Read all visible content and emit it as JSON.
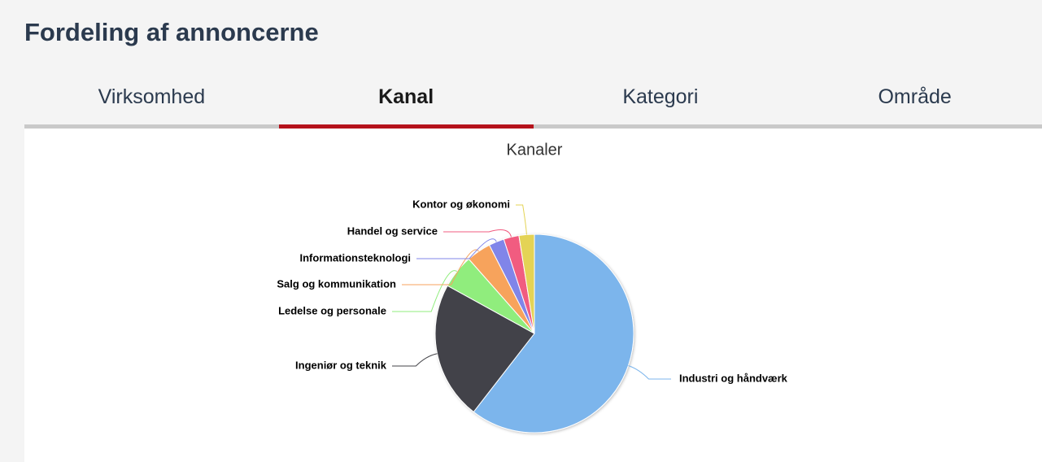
{
  "header": {
    "title": "Fordeling af annoncerne"
  },
  "tabs": [
    "Virksomhed",
    "Kanal",
    "Kategori",
    "Område"
  ],
  "chart_data": {
    "type": "pie",
    "title": "Kanaler",
    "categories": [
      "Industri og håndværk",
      "Ingeniør og teknik",
      "Ledelse og personale",
      "Salg og kommunikation",
      "Informationsteknologi",
      "Handel og service",
      "Kontor og økonomi"
    ],
    "values": [
      60.5,
      22.5,
      5.5,
      4,
      2.5,
      2.5,
      2.5
    ],
    "colors": [
      "#7cb5ec",
      "#434348",
      "#90ed7d",
      "#f7a35c",
      "#8085e9",
      "#f15c80",
      "#e4d354"
    ]
  }
}
